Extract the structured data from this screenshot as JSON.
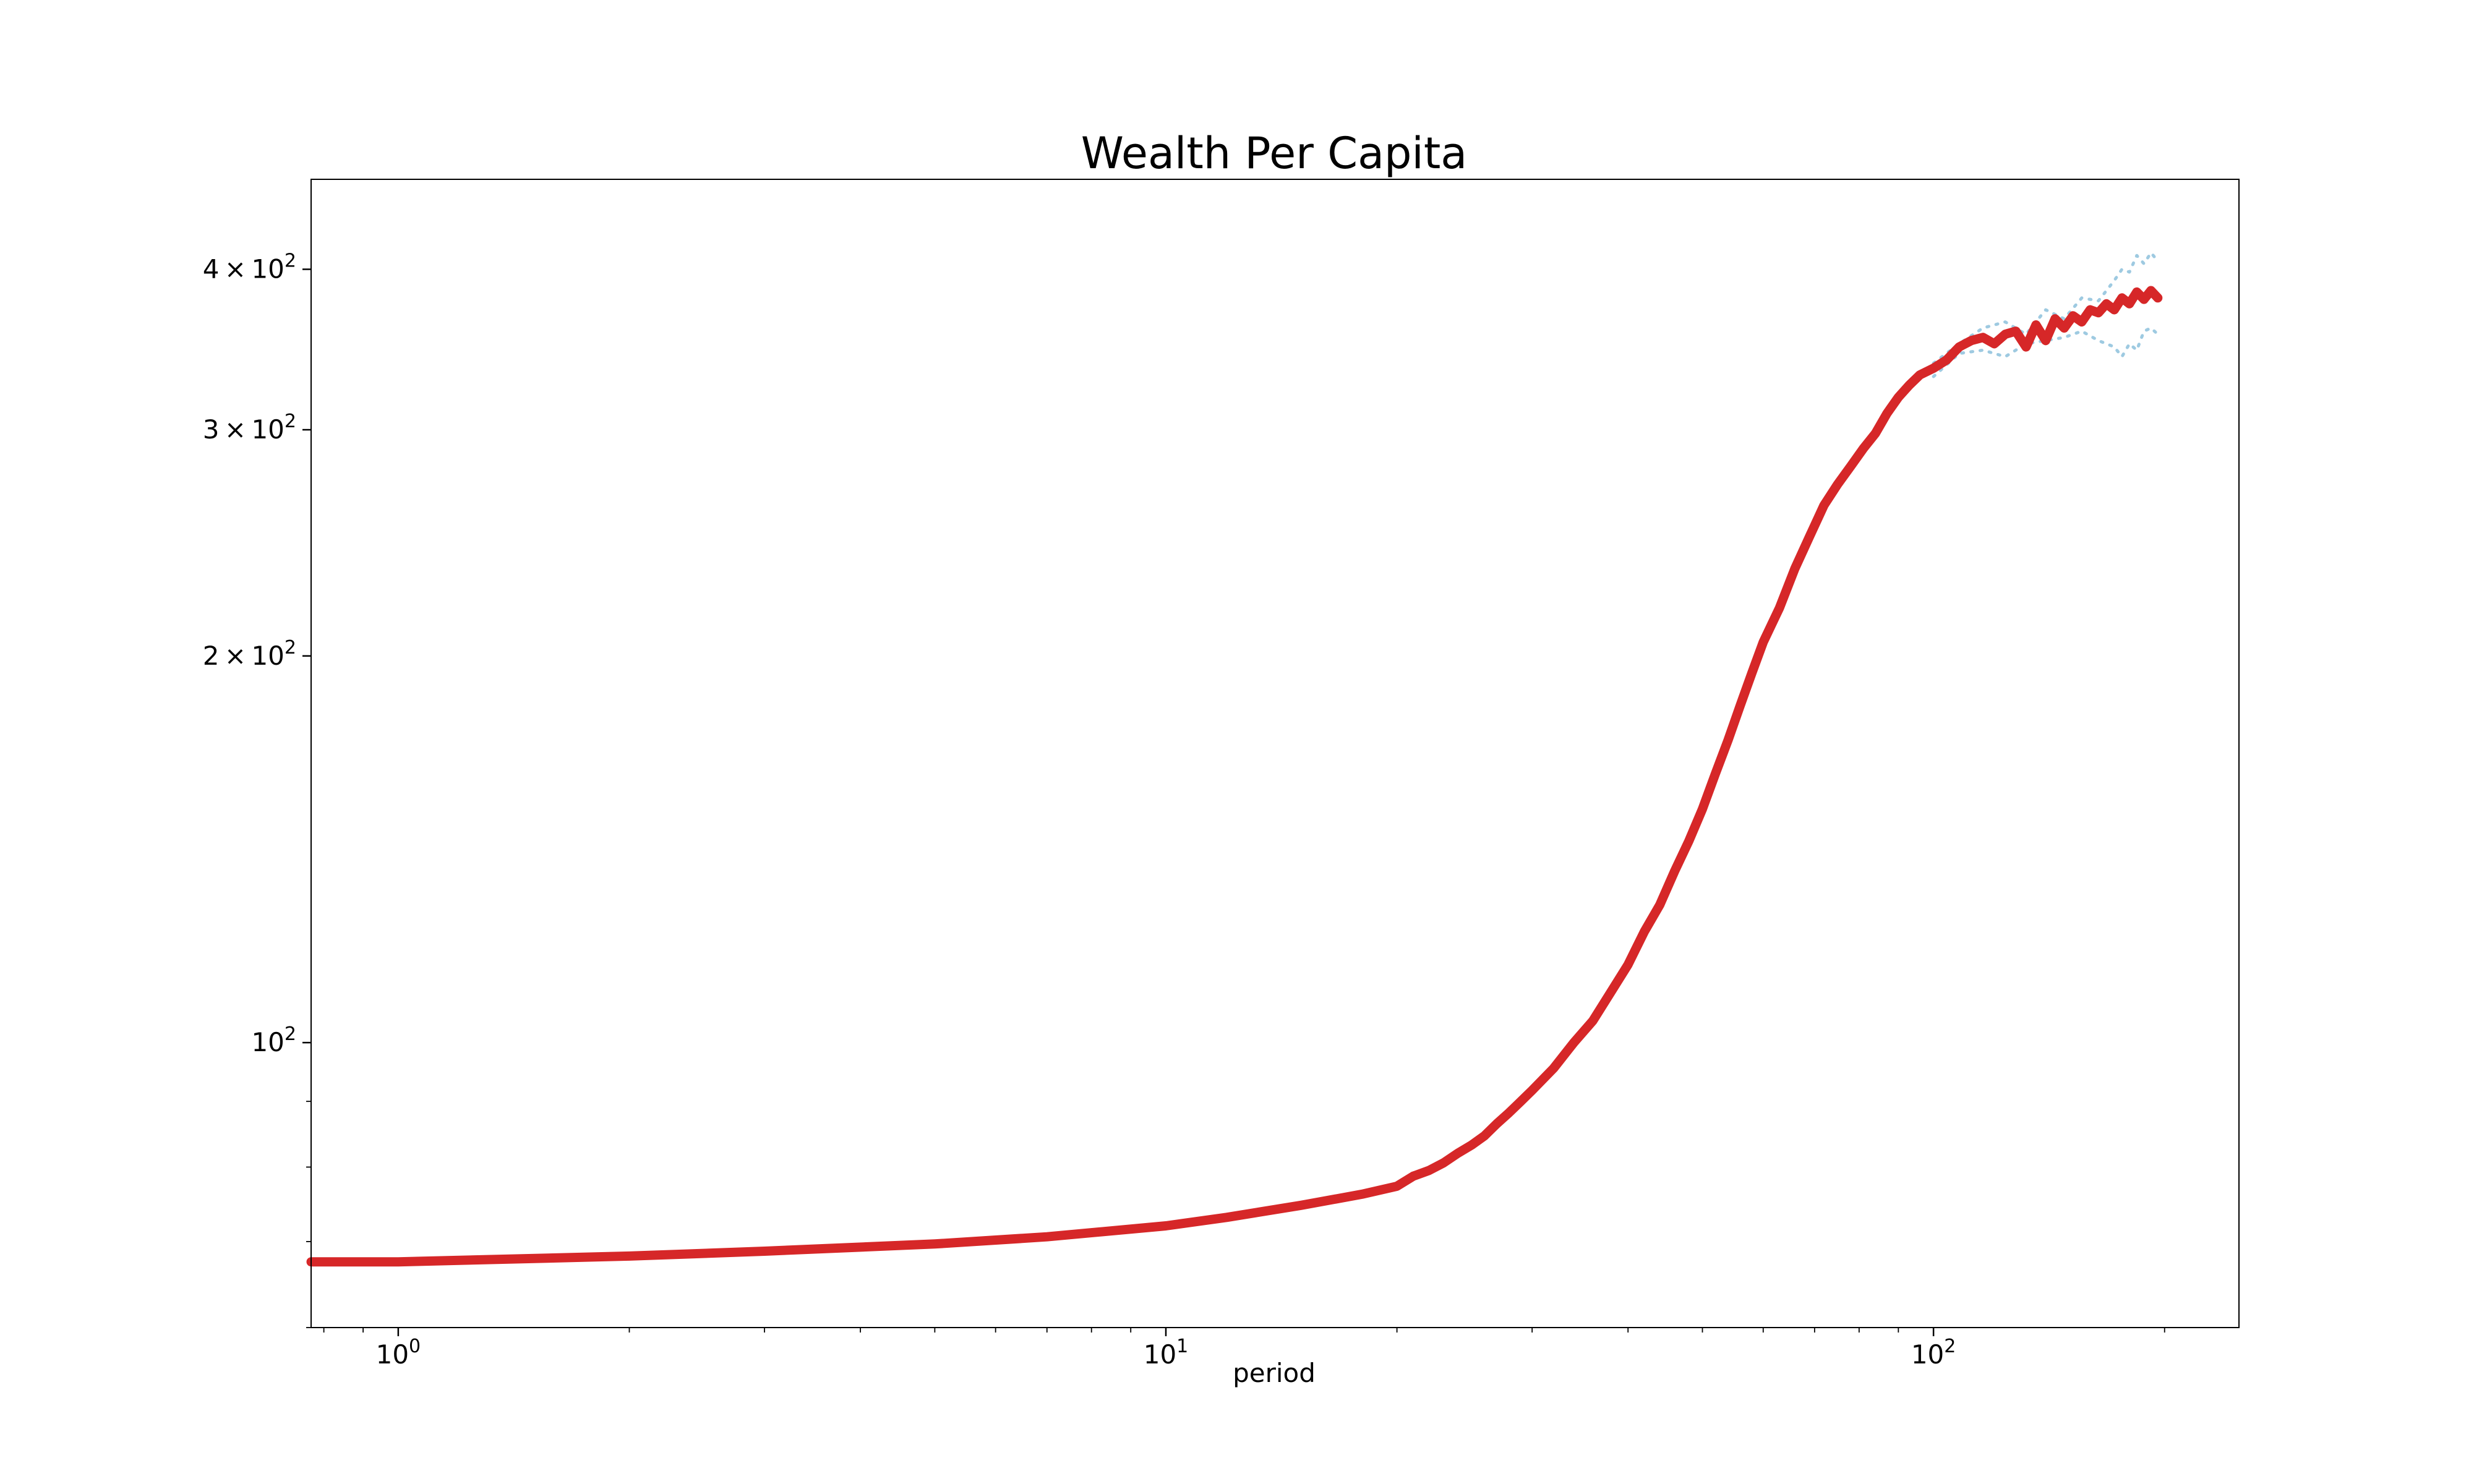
{
  "chart_data": {
    "type": "line",
    "title": "Wealth Per Capita",
    "xlabel": "period",
    "ylabel": "",
    "xscale": "log",
    "yscale": "log",
    "xlim": [
      0.77,
      250
    ],
    "ylim": [
      60,
      470
    ],
    "grid": false,
    "x_ticks": [
      {
        "value": 1,
        "base": "10",
        "exp": "0"
      },
      {
        "value": 10,
        "base": "10",
        "exp": "1"
      },
      {
        "value": 100,
        "base": "10",
        "exp": "2"
      }
    ],
    "y_ticks": [
      {
        "value": 100,
        "mantissa": "",
        "base": "10",
        "exp": "2"
      },
      {
        "value": 200,
        "mantissa": "2",
        "base": "10",
        "exp": "2"
      },
      {
        "value": 300,
        "mantissa": "3",
        "base": "10",
        "exp": "2"
      },
      {
        "value": 400,
        "mantissa": "4",
        "base": "10",
        "exp": "2"
      }
    ],
    "series": [
      {
        "role": "mean",
        "color": "#d62728",
        "x": [
          0.77,
          1,
          2,
          3,
          5,
          7,
          10,
          12,
          15,
          18,
          20,
          21,
          22,
          23,
          24,
          25,
          26,
          27,
          28,
          29,
          30,
          32,
          34,
          36,
          38,
          40,
          42,
          44,
          46,
          48,
          50,
          52,
          54,
          56,
          58,
          60,
          63,
          66,
          69,
          72,
          75,
          78,
          81,
          84,
          87,
          90,
          93,
          96,
          100,
          104,
          108,
          112,
          116,
          120,
          124,
          128,
          132,
          136,
          140,
          144,
          148,
          152,
          156,
          160,
          164,
          168,
          172,
          176,
          180,
          184,
          188,
          192,
          196
        ],
        "y": [
          67.5,
          67.5,
          68.2,
          68.8,
          69.7,
          70.6,
          72.0,
          73.1,
          74.7,
          76.2,
          77.3,
          78.7,
          79.5,
          80.6,
          82.0,
          83.2,
          84.6,
          86.5,
          88.2,
          90.0,
          91.8,
          95.5,
          100.0,
          104.0,
          109.5,
          115.0,
          122.0,
          128.0,
          136.0,
          143.5,
          152.0,
          162.0,
          172.0,
          183.0,
          194.0,
          205.0,
          218.0,
          234.0,
          248.0,
          262.0,
          272.0,
          281.0,
          290.0,
          298.0,
          309.0,
          318.0,
          325.0,
          331.0,
          335.0,
          340.0,
          348.0,
          352.0,
          354.0,
          350.0,
          356.0,
          358.0,
          348.0,
          362.0,
          352.0,
          366.0,
          360.0,
          368.0,
          364.0,
          372.0,
          370.0,
          376.0,
          372.0,
          380.0,
          376.0,
          384.0,
          379.0,
          385.0,
          380.0
        ]
      },
      {
        "role": "upper-band",
        "color": "#9ecae1",
        "x": [
          100,
          108,
          116,
          124,
          132,
          140,
          148,
          156,
          164,
          172,
          176,
          180,
          184,
          188,
          192,
          196
        ],
        "y": [
          338,
          350,
          360,
          364,
          356,
          372,
          366,
          380,
          378,
          392,
          400,
          398,
          410,
          404,
          412,
          406
        ]
      },
      {
        "role": "lower-band",
        "color": "#9ecae1",
        "x": [
          100,
          108,
          116,
          124,
          132,
          140,
          148,
          156,
          164,
          172,
          176,
          180,
          184,
          188,
          192,
          196
        ],
        "y": [
          330,
          344,
          346,
          342,
          350,
          352,
          354,
          358,
          352,
          348,
          342,
          350,
          346,
          358,
          360,
          356
        ]
      }
    ]
  }
}
